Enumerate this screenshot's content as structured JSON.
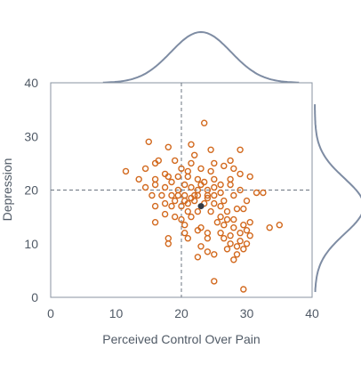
{
  "colors": {
    "point": "#d2691e",
    "mean_point": "#333a45",
    "axis": "#8893a0",
    "density": "#7e8ca3",
    "guide": "#6b7480",
    "text": "#505a66"
  },
  "chart_data": {
    "type": "scatter",
    "title": "",
    "xlabel": "Perceived Control Over Pain",
    "ylabel": "Depression",
    "xlim": [
      0,
      40
    ],
    "ylim": [
      0,
      40
    ],
    "xticks": [
      0,
      10,
      20,
      30,
      40
    ],
    "yticks": [
      0,
      10,
      20,
      30,
      40
    ],
    "grid": false,
    "legend": "none",
    "marginal_x": {
      "type": "density",
      "mean": 23,
      "sd": 4.6
    },
    "marginal_y": {
      "type": "density",
      "mean": 17,
      "sd": 5.2
    },
    "reference_lines": {
      "x": 20,
      "y": 20
    },
    "mean_point": {
      "x": 23,
      "y": 17
    },
    "points": [
      [
        15,
        29
      ],
      [
        18,
        28
      ],
      [
        21.5,
        28.5
      ],
      [
        23.5,
        32.5
      ],
      [
        29,
        27.5
      ],
      [
        16.5,
        25.5
      ],
      [
        22,
        26.5
      ],
      [
        24.5,
        27.5
      ],
      [
        27.5,
        25.5
      ],
      [
        11.5,
        23.5
      ],
      [
        14.5,
        24
      ],
      [
        16,
        25
      ],
      [
        17.5,
        23
      ],
      [
        19,
        25.5
      ],
      [
        20,
        24
      ],
      [
        21,
        23.5
      ],
      [
        21.5,
        25
      ],
      [
        23,
        24
      ],
      [
        24.5,
        23.5
      ],
      [
        25,
        25
      ],
      [
        26.5,
        24.5
      ],
      [
        28,
        24
      ],
      [
        29,
        23
      ],
      [
        13.5,
        22
      ],
      [
        16,
        22
      ],
      [
        18,
        22.5
      ],
      [
        19.5,
        22.5
      ],
      [
        21,
        22.5
      ],
      [
        22.5,
        22
      ],
      [
        23.5,
        21.5
      ],
      [
        25,
        22
      ],
      [
        27.5,
        22
      ],
      [
        30.5,
        22.5
      ],
      [
        14.5,
        20.5
      ],
      [
        16,
        21
      ],
      [
        17.5,
        20.5
      ],
      [
        18.5,
        21.5
      ],
      [
        19.5,
        20
      ],
      [
        20.5,
        21
      ],
      [
        21.5,
        20.5
      ],
      [
        22.5,
        20
      ],
      [
        23,
        21
      ],
      [
        24,
        20
      ],
      [
        25,
        20.5
      ],
      [
        26,
        21
      ],
      [
        27.5,
        21
      ],
      [
        29,
        20
      ],
      [
        31.5,
        19.5
      ],
      [
        32.5,
        19.5
      ],
      [
        15.5,
        19
      ],
      [
        17,
        19
      ],
      [
        18.5,
        19
      ],
      [
        19.5,
        19
      ],
      [
        20.5,
        19
      ],
      [
        21.5,
        18.5
      ],
      [
        22.5,
        19
      ],
      [
        24,
        19
      ],
      [
        25,
        19
      ],
      [
        26,
        19.5
      ],
      [
        28,
        19
      ],
      [
        30,
        18
      ],
      [
        16,
        17
      ],
      [
        17.5,
        17.5
      ],
      [
        18.5,
        17
      ],
      [
        20,
        17
      ],
      [
        21,
        17.5
      ],
      [
        22,
        18
      ],
      [
        23.5,
        17.5
      ],
      [
        25,
        17.5
      ],
      [
        26,
        17
      ],
      [
        27,
        16
      ],
      [
        28.5,
        16.5
      ],
      [
        29.5,
        16.5
      ],
      [
        17.5,
        15.5
      ],
      [
        19,
        15
      ],
      [
        20,
        14.5
      ],
      [
        21.5,
        15
      ],
      [
        22.5,
        16
      ],
      [
        24.5,
        16
      ],
      [
        26,
        15
      ],
      [
        27,
        14.5
      ],
      [
        28,
        14.5
      ],
      [
        29.5,
        13.5
      ],
      [
        30.5,
        14
      ],
      [
        35,
        13.5
      ],
      [
        33.5,
        13
      ],
      [
        16,
        14
      ],
      [
        20.5,
        13.5
      ],
      [
        23,
        13
      ],
      [
        25.5,
        14
      ],
      [
        26.5,
        13.5
      ],
      [
        28,
        13
      ],
      [
        29,
        12
      ],
      [
        30,
        12.5
      ],
      [
        30.5,
        11.5
      ],
      [
        18,
        11
      ],
      [
        20.5,
        12
      ],
      [
        22.5,
        12.5
      ],
      [
        24,
        12
      ],
      [
        26,
        12
      ],
      [
        27.5,
        11.5
      ],
      [
        29,
        10.5
      ],
      [
        30,
        10
      ],
      [
        18,
        10
      ],
      [
        21,
        11
      ],
      [
        23,
        9.5
      ],
      [
        24,
        11
      ],
      [
        26.5,
        11
      ],
      [
        27.5,
        10
      ],
      [
        28.5,
        9.5
      ],
      [
        29.5,
        9
      ],
      [
        24,
        8.5
      ],
      [
        25,
        8
      ],
      [
        27,
        9
      ],
      [
        28.5,
        8
      ],
      [
        22.5,
        7.5
      ],
      [
        28,
        7
      ],
      [
        25,
        3
      ],
      [
        29.5,
        1.5
      ],
      [
        20.5,
        18
      ],
      [
        22,
        19
      ],
      [
        24,
        18.5
      ],
      [
        19,
        18
      ],
      [
        26.5,
        18
      ],
      [
        21,
        16
      ]
    ]
  }
}
